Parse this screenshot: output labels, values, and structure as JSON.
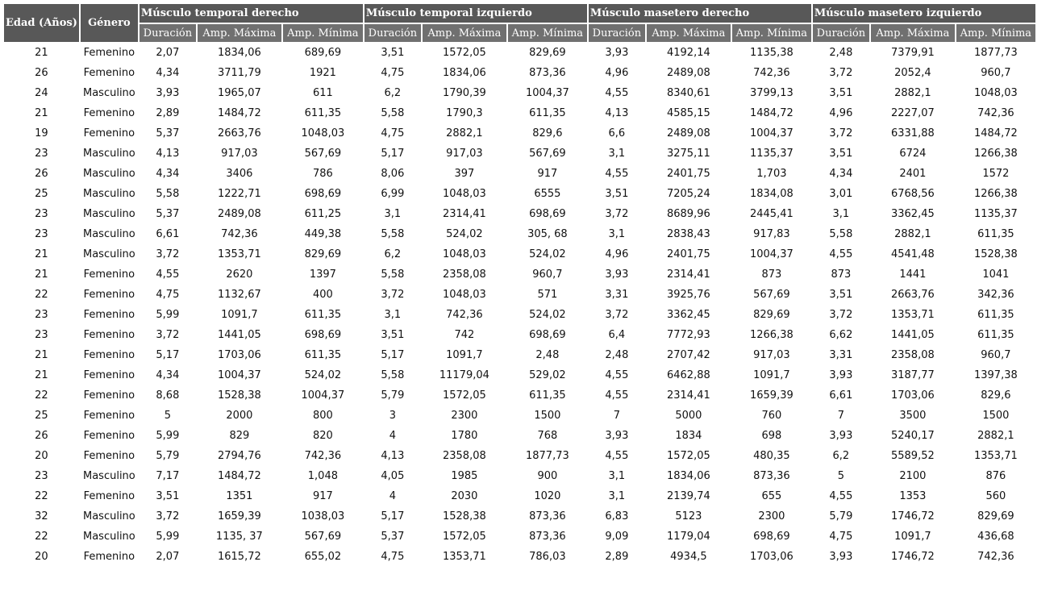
{
  "table": {
    "header": {
      "age": "Edad (Años)",
      "gender": "Género",
      "groups": [
        {
          "title": "Músculo temporal derecho",
          "subcolumns": [
            "Duración",
            "Amp. Máxima",
            "Amp. Mínima"
          ]
        },
        {
          "title": "Músculo temporal izquierdo",
          "subcolumns": [
            "Duración",
            "Amp. Máxima",
            "Amp. Mínima"
          ]
        },
        {
          "title": "Músculo masetero derecho",
          "subcolumns": [
            "Duración",
            "Amp. Máxima",
            "Amp. Mínima"
          ]
        },
        {
          "title": "Músculo masetero izquierdo",
          "subcolumns": [
            "Duración",
            "Amp. Máxima",
            "Amp. Mínima"
          ]
        }
      ]
    },
    "rows": [
      [
        "21",
        "Femenino",
        "2,07",
        "1834,06",
        "689,69",
        "3,51",
        "1572,05",
        "829,69",
        "3,93",
        "4192,14",
        "1135,38",
        "2,48",
        "7379,91",
        "1877,73"
      ],
      [
        "26",
        "Femenino",
        "4,34",
        "3711,79",
        "1921",
        "4,75",
        "1834,06",
        "873,36",
        "4,96",
        "2489,08",
        "742,36",
        "3,72",
        "2052,4",
        "960,7"
      ],
      [
        "24",
        "Masculino",
        "3,93",
        "1965,07",
        "611",
        "6,2",
        "1790,39",
        "1004,37",
        "4,55",
        "8340,61",
        "3799,13",
        "3,51",
        "2882,1",
        "1048,03"
      ],
      [
        "21",
        "Femenino",
        "2,89",
        "1484,72",
        "611,35",
        "5,58",
        "1790,3",
        "611,35",
        "4,13",
        "4585,15",
        "1484,72",
        "4,96",
        "2227,07",
        "742,36"
      ],
      [
        "19",
        "Femenino",
        "5,37",
        "2663,76",
        "1048,03",
        "4,75",
        "2882,1",
        "829,6",
        "6,6",
        "2489,08",
        "1004,37",
        "3,72",
        "6331,88",
        "1484,72"
      ],
      [
        "23",
        "Masculino",
        "4,13",
        "917,03",
        "567,69",
        "5,17",
        "917,03",
        "567,69",
        "3,1",
        "3275,11",
        "1135,37",
        "3,51",
        "6724",
        "1266,38"
      ],
      [
        "26",
        "Masculino",
        "4,34",
        "3406",
        "786",
        "8,06",
        "397",
        "917",
        "4,55",
        "2401,75",
        "1,703",
        "4,34",
        "2401",
        "1572"
      ],
      [
        "25",
        "Masculino",
        "5,58",
        "1222,71",
        "698,69",
        "6,99",
        "1048,03",
        "6555",
        "3,51",
        "7205,24",
        "1834,08",
        "3,01",
        "6768,56",
        "1266,38"
      ],
      [
        "23",
        "Masculino",
        "5,37",
        "2489,08",
        "611,25",
        "3,1",
        "2314,41",
        "698,69",
        "3,72",
        "8689,96",
        "2445,41",
        "3,1",
        "3362,45",
        "1135,37"
      ],
      [
        "23",
        "Masculino",
        "6,61",
        "742,36",
        "449,38",
        "5,58",
        "524,02",
        "305, 68",
        "3,1",
        "2838,43",
        "917,83",
        "5,58",
        "2882,1",
        "611,35"
      ],
      [
        "21",
        "Masculino",
        "3,72",
        "1353,71",
        "829,69",
        "6,2",
        "1048,03",
        "524,02",
        "4,96",
        "2401,75",
        "1004,37",
        "4,55",
        "4541,48",
        "1528,38"
      ],
      [
        "21",
        "Femenino",
        "4,55",
        "2620",
        "1397",
        "5,58",
        "2358,08",
        "960,7",
        "3,93",
        "2314,41",
        "873",
        "873",
        "1441",
        "1041"
      ],
      [
        "22",
        "Femenino",
        "4,75",
        "1132,67",
        "400",
        "3,72",
        "1048,03",
        "571",
        "3,31",
        "3925,76",
        "567,69",
        "3,51",
        "2663,76",
        "342,36"
      ],
      [
        "23",
        "Femenino",
        "5,99",
        "1091,7",
        "611,35",
        "3,1",
        "742,36",
        "524,02",
        "3,72",
        "3362,45",
        "829,69",
        "3,72",
        "1353,71",
        "611,35"
      ],
      [
        "23",
        "Femenino",
        "3,72",
        "1441,05",
        "698,69",
        "3,51",
        "742",
        "698,69",
        "6,4",
        "7772,93",
        "1266,38",
        "6,62",
        "1441,05",
        "611,35"
      ],
      [
        "21",
        "Femenino",
        "5,17",
        "1703,06",
        "611,35",
        "5,17",
        "1091,7",
        "2,48",
        "2,48",
        "2707,42",
        "917,03",
        "3,31",
        "2358,08",
        "960,7"
      ],
      [
        "21",
        "Femenino",
        "4,34",
        "1004,37",
        "524,02",
        "5,58",
        "11179,04",
        "529,02",
        "4,55",
        "6462,88",
        "1091,7",
        "3,93",
        "3187,77",
        "1397,38"
      ],
      [
        "22",
        "Femenino",
        "8,68",
        "1528,38",
        "1004,37",
        "5,79",
        "1572,05",
        "611,35",
        "4,55",
        "2314,41",
        "1659,39",
        "6,61",
        "1703,06",
        "829,6"
      ],
      [
        "25",
        "Femenino",
        "5",
        "2000",
        "800",
        "3",
        "2300",
        "1500",
        "7",
        "5000",
        "760",
        "7",
        "3500",
        "1500"
      ],
      [
        "26",
        "Femenino",
        "5,99",
        "829",
        "820",
        "4",
        "1780",
        "768",
        "3,93",
        "1834",
        "698",
        "3,93",
        "5240,17",
        "2882,1"
      ],
      [
        "20",
        "Femenino",
        "5,79",
        "2794,76",
        "742,36",
        "4,13",
        "2358,08",
        "1877,73",
        "4,55",
        "1572,05",
        "480,35",
        "6,2",
        "5589,52",
        "1353,71"
      ],
      [
        "23",
        "Masculino",
        "7,17",
        "1484,72",
        "1,048",
        "4,05",
        "1985",
        "900",
        "3,1",
        "1834,06",
        "873,36",
        "5",
        "2100",
        "876"
      ],
      [
        "22",
        "Femenino",
        "3,51",
        "1351",
        "917",
        "4",
        "2030",
        "1020",
        "3,1",
        "2139,74",
        "655",
        "4,55",
        "1353",
        "560"
      ],
      [
        "32",
        "Masculino",
        "3,72",
        "1659,39",
        "1038,03",
        "5,17",
        "1528,38",
        "873,36",
        "6,83",
        "5123",
        "2300",
        "5,79",
        "1746,72",
        "829,69"
      ],
      [
        "22",
        "Masculino",
        "5,99",
        "1135, 37",
        "567,69",
        "5,37",
        "1572,05",
        "873,36",
        "9,09",
        "1179,04",
        "698,69",
        "4,75",
        "1091,7",
        "436,68"
      ],
      [
        "20",
        "Femenino",
        "2,07",
        "1615,72",
        "655,02",
        "4,75",
        "1353,71",
        "786,03",
        "2,89",
        "4934,5",
        "1703,06",
        "3,93",
        "1746,72",
        "742,36"
      ]
    ]
  }
}
